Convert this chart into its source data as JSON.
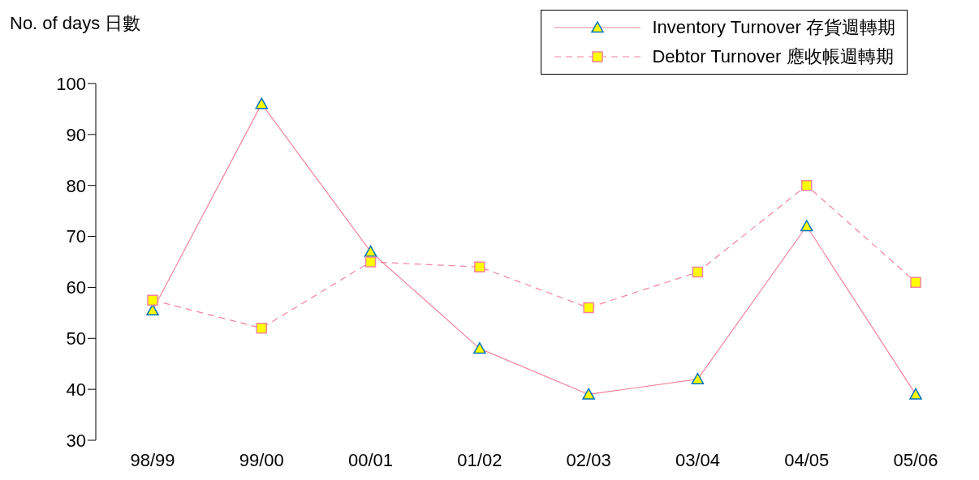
{
  "chart_data": {
    "type": "line",
    "ylabel": "No. of days 日數",
    "categories": [
      "98/99",
      "99/00",
      "00/01",
      "01/02",
      "02/03",
      "03/04",
      "04/05",
      "05/06"
    ],
    "series": [
      {
        "name": "Inventory Turnover 存貨週轉期",
        "color": "#f0849c",
        "marker": "triangle",
        "line_style": "solid",
        "values": [
          55.5,
          96,
          67,
          48,
          39,
          42,
          72,
          39
        ]
      },
      {
        "name": "Debtor Turnover 應收帳週轉期",
        "color": "#f0849c",
        "marker": "square",
        "line_style": "dashed",
        "values": [
          57.5,
          52,
          65,
          64,
          56,
          63,
          80,
          61
        ]
      }
    ],
    "ylim": [
      30,
      100
    ],
    "yticks": [
      30,
      40,
      50,
      60,
      70,
      80,
      90,
      100
    ],
    "grid": false,
    "legend": "top right"
  }
}
